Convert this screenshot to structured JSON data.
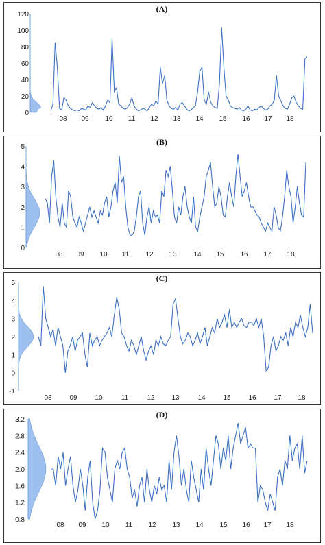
{
  "chart_data": [
    {
      "type": "line",
      "title": "(A)",
      "ylim": [
        0,
        120
      ],
      "yticks": [
        0,
        20,
        40,
        60,
        80,
        100,
        120
      ],
      "xtick_labels": [
        "08",
        "09",
        "10",
        "11",
        "12",
        "13",
        "14",
        "15",
        "16",
        "17",
        "18"
      ],
      "x_range": [
        "2007-05",
        "2018-10"
      ],
      "density_profile": "right-skewed, concentrated near 0",
      "series": [
        {
          "values": [
            2,
            10,
            85,
            55,
            5,
            3,
            18,
            15,
            8,
            5,
            3,
            2,
            3,
            2,
            5,
            4,
            3,
            8,
            6,
            12,
            8,
            5,
            4,
            6,
            3,
            8,
            15,
            12,
            90,
            25,
            30,
            10,
            8,
            5,
            4,
            6,
            10,
            18,
            8,
            4,
            2,
            3,
            5,
            4,
            2,
            6,
            10,
            8,
            14,
            10,
            55,
            35,
            45,
            15,
            8,
            5,
            4,
            6,
            3,
            10,
            12,
            8,
            4,
            2,
            3,
            6,
            8,
            25,
            50,
            55,
            15,
            10,
            25,
            12,
            8,
            6,
            5,
            35,
            103,
            55,
            20,
            15,
            8,
            6,
            5,
            4,
            6,
            3,
            2,
            4,
            8,
            3,
            2,
            4,
            3,
            6,
            8,
            5,
            3,
            4,
            8,
            10,
            15,
            45,
            20,
            14,
            8,
            5,
            4,
            10,
            18,
            20,
            12,
            8,
            5,
            4,
            65,
            68
          ],
          "color": "#3a6fc4"
        }
      ]
    },
    {
      "type": "line",
      "title": "(B)",
      "ylim": [
        0,
        5
      ],
      "yticks": [
        0,
        1,
        2,
        3,
        4,
        5
      ],
      "xtick_labels": [
        "08",
        "09",
        "10",
        "11",
        "12",
        "13",
        "14",
        "15",
        "16",
        "17",
        "18"
      ],
      "x_range": [
        "2007-05",
        "2018-10"
      ],
      "density_profile": "unimodal, peak near 1.7",
      "series": [
        {
          "values": [
            2.4,
            2.2,
            1.2,
            3.5,
            4.3,
            2.5,
            1.5,
            1.0,
            2.2,
            1.2,
            1.0,
            2.8,
            2.5,
            1.5,
            1.2,
            1.0,
            1.5,
            1.2,
            0.8,
            1.2,
            1.6,
            2.0,
            1.5,
            1.8,
            1.5,
            1.2,
            1.8,
            1.6,
            2.2,
            2.5,
            1.5,
            2.0,
            2.8,
            3.2,
            2.2,
            4.5,
            3.2,
            3.5,
            2.0,
            1.0,
            0.6,
            0.6,
            0.8,
            1.5,
            2.5,
            2.8,
            1.2,
            0.6,
            1.5,
            2.0,
            1.2,
            1.8,
            1.5,
            1.6,
            1.2,
            2.8,
            2.5,
            3.8,
            3.5,
            4.0,
            2.8,
            1.5,
            1.2,
            2.0,
            1.6,
            2.5,
            3.0,
            2.0,
            1.5,
            1.2,
            2.5,
            1.0,
            0.8,
            1.5,
            2.0,
            2.5,
            3.5,
            3.8,
            4.2,
            3.0,
            2.0,
            2.2,
            3.0,
            2.5,
            1.6,
            1.5,
            2.5,
            3.2,
            2.5,
            2.0,
            3.5,
            4.6,
            3.5,
            2.5,
            2.8,
            3.2,
            2.5,
            2.0,
            2.0,
            1.8,
            1.6,
            1.5,
            1.2,
            1.0,
            0.8,
            1.2,
            1.0,
            0.8,
            2.0,
            1.6,
            1.0,
            0.8,
            1.5,
            2.5,
            3.8,
            3.0,
            2.5,
            1.2,
            2.0,
            3.0,
            2.2,
            1.6,
            1.5,
            4.2
          ]
        }
      ]
    },
    {
      "type": "line",
      "title": "(C)",
      "ylim": [
        -1,
        5
      ],
      "yticks": [
        -1,
        0,
        1,
        2,
        3,
        4,
        5
      ],
      "xtick_labels": [
        "08",
        "09",
        "10",
        "11",
        "12",
        "13",
        "14",
        "15",
        "16",
        "17",
        "18"
      ],
      "x_range": [
        "2007-05",
        "2018-10"
      ],
      "density_profile": "unimodal, peak near 2",
      "series": [
        {
          "values": [
            2.0,
            1.5,
            4.8,
            3.0,
            2.5,
            2.0,
            2.4,
            1.5,
            2.5,
            2.0,
            1.5,
            0.0,
            1.2,
            1.5,
            2.0,
            1.2,
            1.8,
            2.0,
            2.2,
            1.0,
            0.3,
            2.2,
            1.5,
            1.8,
            2.0,
            1.5,
            1.8,
            2.0,
            2.2,
            2.5,
            2.0,
            3.2,
            4.2,
            3.5,
            2.2,
            2.0,
            1.5,
            1.2,
            1.8,
            1.5,
            1.0,
            1.5,
            2.0,
            1.2,
            0.7,
            1.2,
            1.5,
            1.0,
            1.8,
            1.5,
            2.0,
            1.6,
            1.5,
            1.8,
            2.0,
            3.8,
            4.1,
            3.0,
            2.0,
            1.6,
            1.8,
            2.2,
            2.0,
            1.5,
            1.8,
            2.2,
            1.6,
            2.0,
            2.5,
            1.5,
            2.0,
            2.5,
            2.2,
            3.0,
            2.5,
            2.8,
            3.2,
            2.5,
            3.5,
            2.5,
            2.8,
            2.5,
            2.8,
            3.0,
            2.6,
            2.5,
            2.8,
            2.8,
            2.6,
            3.0,
            2.5,
            3.0,
            2.0,
            0.1,
            0.3,
            1.5,
            2.0,
            1.2,
            1.5,
            2.0,
            1.8,
            2.2,
            1.5,
            2.5,
            2.0,
            2.8,
            2.5,
            3.2,
            2.5,
            2.0,
            2.5,
            3.8,
            2.2
          ]
        }
      ]
    },
    {
      "type": "line",
      "title": "(D)",
      "ylim": [
        0.8,
        3.2
      ],
      "yticks": [
        0.8,
        1.2,
        1.6,
        2.0,
        2.4,
        2.8,
        3.2
      ],
      "xtick_labels": [
        "08",
        "09",
        "10",
        "11",
        "12",
        "13",
        "14",
        "15",
        "16",
        "17",
        "18"
      ],
      "x_range": [
        "2007-05",
        "2018-10"
      ],
      "density_profile": "broad, centered near 2.0",
      "series": [
        {
          "values": [
            2.0,
            2.0,
            1.6,
            2.3,
            2.0,
            2.4,
            1.6,
            2.0,
            2.3,
            1.6,
            1.2,
            1.5,
            2.0,
            1.6,
            1.0,
            1.8,
            2.2,
            1.2,
            0.8,
            1.0,
            1.5,
            2.5,
            2.4,
            1.8,
            1.5,
            1.2,
            2.0,
            2.2,
            2.0,
            2.4,
            2.5,
            2.0,
            1.8,
            1.3,
            1.5,
            1.1,
            1.6,
            1.8,
            1.2,
            2.0,
            1.5,
            1.2,
            1.6,
            1.4,
            1.8,
            1.5,
            1.6,
            1.2,
            2.2,
            1.5,
            2.4,
            2.8,
            2.3,
            1.6,
            2.0,
            1.5,
            1.2,
            2.2,
            1.8,
            1.5,
            1.2,
            2.0,
            1.5,
            2.5,
            2.0,
            1.6,
            2.2,
            2.8,
            2.6,
            2.0,
            2.5,
            2.2,
            2.8,
            2.0,
            2.5,
            2.8,
            3.1,
            2.6,
            2.8,
            3.0,
            2.5,
            2.6,
            2.5,
            2.5,
            1.2,
            1.6,
            1.5,
            1.2,
            1.0,
            1.4,
            1.2,
            1.0,
            1.8,
            2.0,
            1.6,
            2.2,
            2.0,
            2.8,
            2.2,
            2.5,
            2.6,
            2.0,
            2.8,
            1.9,
            2.2
          ]
        }
      ]
    }
  ]
}
